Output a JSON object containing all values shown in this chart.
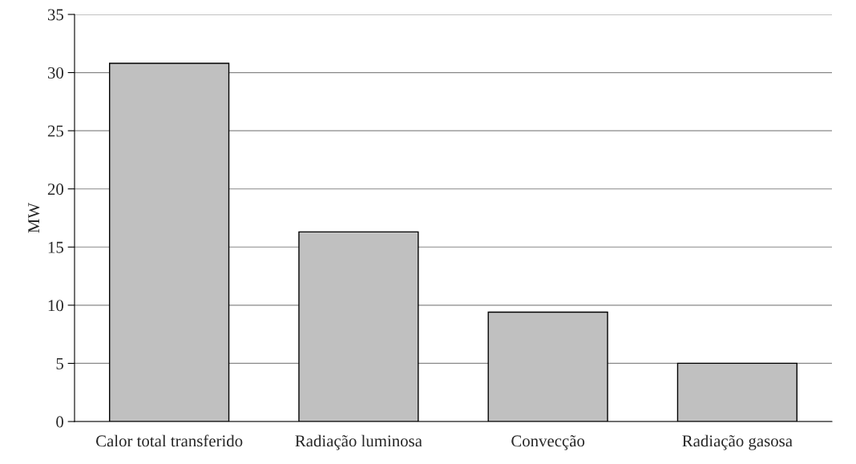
{
  "chart_data": {
    "type": "bar",
    "ylabel": "MW",
    "categories": [
      "Calor total transferido",
      "Radiação luminosa",
      "Convecção",
      "Radiação gasosa"
    ],
    "values": [
      30.8,
      16.3,
      9.4,
      5.0
    ],
    "color": "#c0c0c0",
    "ylim": [
      0,
      35
    ],
    "yticks": [
      0,
      5,
      10,
      15,
      20,
      25,
      30,
      35
    ],
    "grid": "y",
    "legend": false
  }
}
